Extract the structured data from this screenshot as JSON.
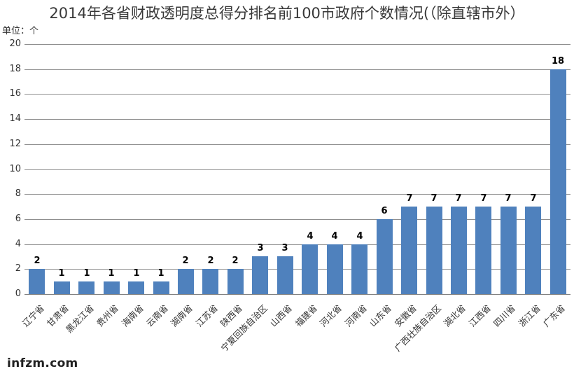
{
  "title": "2014年各省财政透明度总得分排名前100市政府个数情况(（除直辖市外）",
  "unit_label": "单位：个",
  "watermark": "infzm.com",
  "colors": {
    "bar": "#4F81BD",
    "gridline": "#8f8f8f",
    "axis_line": "#7f7f7f",
    "title_text": "#383838",
    "axis_text": "#333333",
    "data_label_text": "#000000",
    "watermark_text": "#212121",
    "background": "#ffffff"
  },
  "chart_data": {
    "type": "bar",
    "title": "2014年各省财政透明度总得分排名前100市政府个数情况(（除直辖市外）",
    "xlabel": "",
    "ylabel": "单位：个",
    "categories": [
      "辽宁省",
      "甘肃省",
      "黑龙江省",
      "贵州省",
      "海南省",
      "云南省",
      "湖南省",
      "江苏省",
      "陕西省",
      "宁夏回族自治区",
      "山西省",
      "福建省",
      "河北省",
      "河南省",
      "山东省",
      "安徽省",
      "广西壮族自治区",
      "湖北省",
      "江西省",
      "四川省",
      "浙江省",
      "广东省"
    ],
    "values": [
      2,
      1,
      1,
      1,
      1,
      1,
      2,
      2,
      2,
      3,
      3,
      4,
      4,
      4,
      6,
      7,
      7,
      7,
      7,
      7,
      7,
      18
    ],
    "data_labels_shown": true,
    "ylim": [
      0,
      20
    ],
    "ytick_interval": 2,
    "yticks": [
      0,
      2,
      4,
      6,
      8,
      10,
      12,
      14,
      16,
      18,
      20
    ],
    "grid": true,
    "legend": false,
    "x_label_rotation_deg": 45
  }
}
